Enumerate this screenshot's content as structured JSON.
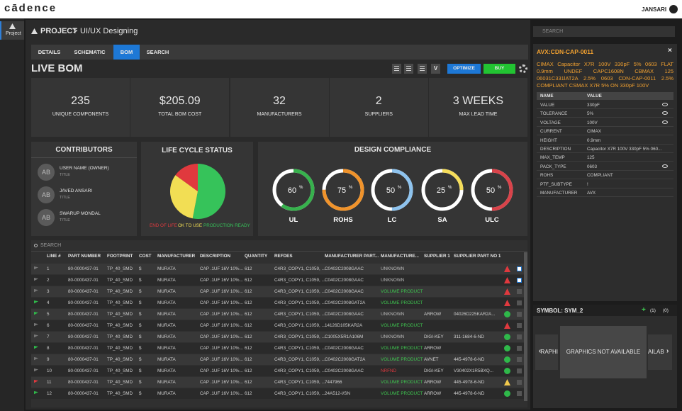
{
  "header": {
    "logo": "cādence",
    "user": "JANSARI"
  },
  "sidebar": {
    "item": "Project"
  },
  "breadcrumb": {
    "root": "PROJECT",
    "sep": ">",
    "page": "UI/UX Designing"
  },
  "tabs": {
    "items": [
      "DETAILS",
      "SCHEMATIC",
      "BOM",
      "SEARCH"
    ],
    "active": 2
  },
  "bom": {
    "title": "LIVE BOM",
    "view_button": "V",
    "optimize": "OPTIMIZE",
    "buy": "BUY"
  },
  "stats": [
    {
      "value": "235",
      "label": "UNIQUE COMPONENTS"
    },
    {
      "value": "$205.09",
      "label": "TOTAL BOM COST"
    },
    {
      "value": "32",
      "label": "MANUFACTURERS"
    },
    {
      "value": "2",
      "label": "SUPPLIERS"
    },
    {
      "value": "3 WEEKS",
      "label": "MAX LEAD TIME"
    }
  ],
  "contributors": {
    "title": "CONTRIBUTORS",
    "items": [
      {
        "initials": "AB",
        "name": "USER NAME (OWNER)",
        "role": "TITLE"
      },
      {
        "initials": "AB",
        "name": "JAVED ANSARI",
        "role": "TITLE"
      },
      {
        "initials": "AB",
        "name": "SWARUP MONDAL",
        "role": "TITLE"
      }
    ]
  },
  "chart_data": {
    "type": "pie",
    "title": "LIFE CYCLE STATUS",
    "categories": [
      "END OF LIFE",
      "OK TO USE",
      "PRODUCTION READY"
    ],
    "values": [
      15,
      32,
      53
    ],
    "colors": [
      "#e0393e",
      "#f2de54",
      "#36c35a"
    ]
  },
  "compliance": {
    "title": "DESIGN COMPLIANCE",
    "unit": "%",
    "items": [
      {
        "name": "UL",
        "value": 60,
        "color": "#37b24d"
      },
      {
        "name": "ROHS",
        "value": 75,
        "color": "#f0932b"
      },
      {
        "name": "LC",
        "value": 50,
        "color": "#8ec3ee"
      },
      {
        "name": "SA",
        "value": 25,
        "color": "#f5dd5a"
      },
      {
        "name": "ULC",
        "value": 50,
        "color": "#d9434a"
      }
    ]
  },
  "table": {
    "search": "SEARCH",
    "headers": [
      "LINE #",
      "PART NUMBER",
      "FOOTPRINT",
      "COST",
      "MANUFACTURER",
      "DESCRIPTION",
      "QUANTITY",
      "REFDES",
      "MANUFACTURER PART...",
      "MANUFACTURE...",
      "SUPPLIER 1",
      "SUPPLIER PART NO 1"
    ],
    "rows": [
      {
        "cells": [
          1,
          "80-0000437-01",
          "TP_40_SMD",
          "$",
          "MURATA",
          "CAP .1UF 16V 10%...",
          612,
          "C4R3_COPY1, C1059, ...",
          "C0402C2008GAAC",
          "UNKNOWN",
          "",
          ""
        ],
        "status_color": "#bdbdbd",
        "flag": "#777777",
        "alert": "warn",
        "checked": true
      },
      {
        "cells": [
          2,
          "80-0000437-01",
          "TP_40_SMD",
          "$",
          "MURATA",
          "CAP .1UF 16V 10%...",
          612,
          "C4R3_COPY1, C1059, ...",
          "C0402C2008GAAC",
          "UNKNOWN",
          "",
          ""
        ],
        "status_color": "#bdbdbd",
        "flag": "#777777",
        "alert": "warn",
        "checked": true
      },
      {
        "cells": [
          3,
          "80-0000437-01",
          "TP_40_SMD",
          "$",
          "MURATA",
          "CAP .1UF 16V 10%...",
          612,
          "C4R3_COPY1, C1059, ...",
          "C0402C2008GAAC",
          "VOLUME PRODUCT",
          "",
          ""
        ],
        "status_color": "#3ec44f",
        "flag": "#777777",
        "alert": "warn",
        "checked": false
      },
      {
        "cells": [
          4,
          "80-0000437-01",
          "TP_40_SMD",
          "$",
          "MURATA",
          "CAP .1UF 16V 10%...",
          612,
          "C4R3_COPY1, C1059, ...",
          "C0402C2008GAT2A",
          "VOLUME PRODUCT",
          "",
          ""
        ],
        "status_color": "#3ec44f",
        "flag": "#2fb84a",
        "alert": "warn",
        "checked": false
      },
      {
        "cells": [
          5,
          "80-0000437-01",
          "TP_40_SMD",
          "$",
          "MURATA",
          "CAP .1UF 16V 10%...",
          612,
          "C4R3_COPY1, C1059, ...",
          "C0402C2008GAAC",
          "UNKNOWN",
          "ARROW",
          "04026D225KAR2A..."
        ],
        "status_color": "#bdbdbd",
        "flag": "#2fb84a",
        "alert": "ok",
        "checked": false
      },
      {
        "cells": [
          6,
          "80-0000437-01",
          "TP_40_SMD",
          "$",
          "MURATA",
          "CAP .1UF 16V 10%...",
          612,
          "C4R3_COPY1, C1059, ...",
          "14126D105KAR2A",
          "VOLUME PRODUCT",
          "",
          ""
        ],
        "status_color": "#3ec44f",
        "flag": "#777777",
        "alert": "warn",
        "checked": false
      },
      {
        "cells": [
          7,
          "80-0000437-01",
          "TP_40_SMD",
          "$",
          "MURATA",
          "CAP .1UF 16V 10%...",
          612,
          "C4R3_COPY1, C1059, ...",
          "C1005X5R1A106M",
          "UNKNOWN",
          "DIGI-KEY",
          "311-1684-6-ND"
        ],
        "status_color": "#bdbdbd",
        "flag": "#777777",
        "alert": "ok",
        "checked": false
      },
      {
        "cells": [
          8,
          "80-0000437-01",
          "TP_40_SMD",
          "$",
          "MURATA",
          "CAP .1UF 16V 10%...",
          612,
          "C4R3_COPY1, C1059, ...",
          "C0402C2008GAAC",
          "VOLUME PRODUCT",
          "ARROW",
          ""
        ],
        "status_color": "#3ec44f",
        "flag": "#2fb84a",
        "alert": "ok",
        "checked": false
      },
      {
        "cells": [
          9,
          "80-0000437-01",
          "TP_40_SMD",
          "$",
          "MURATA",
          "CAP .1UF 16V 10%...",
          612,
          "C4R3_COPY1, C1059, ...",
          "C0402C2008GAT2A",
          "VOLUME PRODUCT",
          "AVNET",
          "445-4978-6-ND"
        ],
        "status_color": "#3ec44f",
        "flag": "#777777",
        "alert": "ok",
        "checked": false
      },
      {
        "cells": [
          10,
          "80-0000437-01",
          "TP_40_SMD",
          "$",
          "MURATA",
          "CAP .1UF 16V 10%...",
          612,
          "C4R3_COPY1, C1059, ...",
          "C0402C2008GAAC",
          "NRFND",
          "DIGI-KEY",
          "V30402X1R5BXQ..."
        ],
        "status_color": "#e0393e",
        "flag": "#777777",
        "alert": "ok",
        "checked": false
      },
      {
        "cells": [
          11,
          "80-0000437-01",
          "TP_40_SMD",
          "$",
          "MURATA",
          "CAP .1UF 16V 10%...",
          612,
          "C4R3_COPY1, C1059, ...",
          "7447966",
          "VOLUME PRODUCT",
          "ARROW",
          "445-4978-6-ND"
        ],
        "status_color": "#3ec44f",
        "flag": "#e0393e",
        "alert": "caution",
        "checked": false
      },
      {
        "cells": [
          12,
          "80-0000437-01",
          "TP_40_SMD",
          "$",
          "MURATA",
          "CAP .1UF 16V 10%...",
          612,
          "C4R3_COPY1, C1059, ...",
          "24A512-I/SN",
          "VOLUME PRODUCT",
          "ARROW",
          "445-4978-6-ND"
        ],
        "status_color": "#3ec44f",
        "flag": "#2fb84a",
        "alert": "ok",
        "checked": false
      }
    ]
  },
  "part": {
    "search": "SEARCH",
    "title": "AVX:CDN-CAP-0011",
    "description": "CIMAX Capacitor X7R 100V 330pF 5% 0603 FLAT 0.9mm UNDEF CAPC1608N CBMAX 125 06031C331lAT2A 2.5% 0603 CDN-CAP-0011 2.5% COMPLIANT CSMAX X7R 5% ON 330pF 100V",
    "headers": [
      "NAME",
      "VALUE"
    ],
    "rows": [
      {
        "name": "VALUE",
        "value": "330pF",
        "eye": true
      },
      {
        "name": "TOLERANCE",
        "value": "5%",
        "eye": true
      },
      {
        "name": "VOLTAGE",
        "value": "100V",
        "eye": true
      },
      {
        "name": "CURRENT",
        "value": "CIMAX",
        "eye": false
      },
      {
        "name": "HEIGHT",
        "value": "0.9mm",
        "eye": false
      },
      {
        "name": "DESCRIPTION",
        "value": "Capacitor X7R 100V 330pF 5% 060...",
        "eye": false
      },
      {
        "name": "MAX_TEMP",
        "value": "125",
        "eye": false
      },
      {
        "name": "PACK_TYPE",
        "value": "0603",
        "eye": true
      },
      {
        "name": "ROHS",
        "value": "COMPLIANT",
        "eye": false
      },
      {
        "name": "PTF_SUBTYPE",
        "value": "!",
        "eye": false
      },
      {
        "name": "MANUFACTURER",
        "value": "AVX",
        "eye": false
      }
    ]
  },
  "symbol": {
    "title": "SYMBOL: SYM_2",
    "count_a": "(1)",
    "count_b": "(0)",
    "graphic": "GRAPHICS NOT AVAILABLE",
    "left_peek": "RAPHI",
    "right_peek": "AILAB"
  }
}
